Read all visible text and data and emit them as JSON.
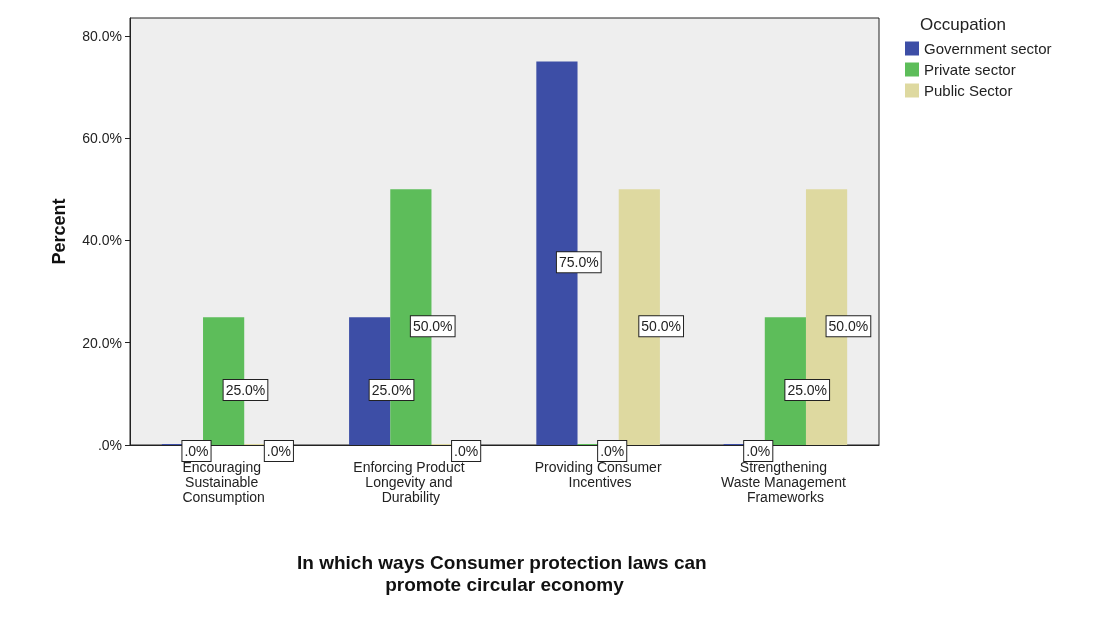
{
  "chart_data": {
    "type": "bar",
    "xlabel": "In which ways Consumer protection laws can promote circular economy",
    "ylabel": "Percent",
    "legend_title": "Occupation",
    "legend": "top right",
    "grid": false,
    "categories": [
      "Encouraging Sustainable Consumption",
      "Enforcing Product Longevity and Durability",
      "Providing Consumer Incentives",
      "Strengthening Waste Management Frameworks"
    ],
    "ylim": [
      0,
      83.5
    ],
    "yticks": [
      {
        "value": 0,
        "label": ".0%"
      },
      {
        "value": 20,
        "label": "20.0%"
      },
      {
        "value": 40,
        "label": "40.0%"
      },
      {
        "value": 60,
        "label": "60.0%"
      },
      {
        "value": 80,
        "label": "80.0%"
      }
    ],
    "series": [
      {
        "name": "Government sector",
        "color": "#3d4ea6",
        "values": [
          0,
          25,
          75,
          0
        ],
        "value_labels": [
          ".0%",
          "25.0%",
          "75.0%",
          ".0%"
        ]
      },
      {
        "name": "Private sector",
        "color": "#5dbd5a",
        "values": [
          25,
          50,
          0,
          25
        ],
        "value_labels": [
          "25.0%",
          "50.0%",
          ".0%",
          "25.0%"
        ]
      },
      {
        "name": "Public Sector",
        "color": "#ded9a0",
        "values": [
          0,
          0,
          50,
          50
        ],
        "value_labels": [
          ".0%",
          ".0%",
          "50.0%",
          "50.0%"
        ]
      }
    ]
  }
}
